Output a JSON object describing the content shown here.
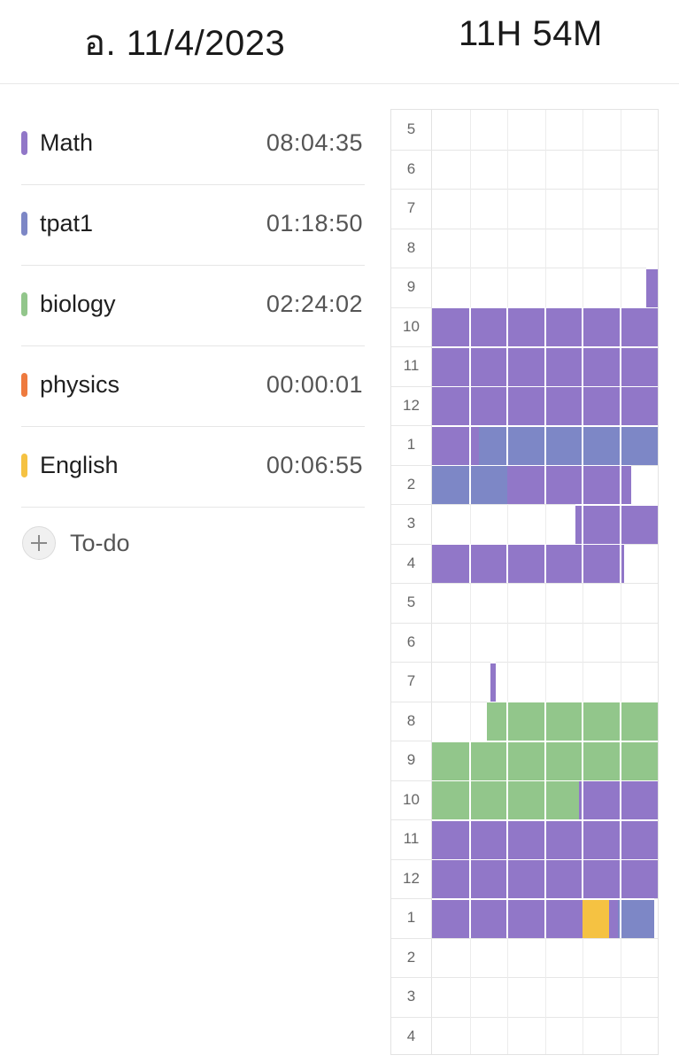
{
  "header": {
    "date": "อ. 11/4/2023",
    "total": "11H 54M"
  },
  "colors": {
    "Math": "#9177c8",
    "tpat1": "#7d87c6",
    "biology": "#92c68b",
    "physics": "#ee7a3e",
    "English": "#f5c242"
  },
  "subjects": [
    {
      "name": "Math",
      "time": "08:04:35"
    },
    {
      "name": "tpat1",
      "time": "01:18:50"
    },
    {
      "name": "biology",
      "time": "02:24:02"
    },
    {
      "name": "physics",
      "time": "00:00:01"
    },
    {
      "name": "English",
      "time": "00:06:55"
    }
  ],
  "todo": {
    "label": "To-do",
    "icon": "plus-icon"
  },
  "timeline": {
    "hours": [
      "5",
      "6",
      "7",
      "8",
      "9",
      "10",
      "11",
      "12",
      "1",
      "2",
      "3",
      "4",
      "5",
      "6",
      "7",
      "8",
      "9",
      "10",
      "11",
      "12",
      "1",
      "2",
      "3",
      "4"
    ],
    "sessions": [
      {
        "subject": "Math",
        "row": 4,
        "from": 57,
        "to": 60
      },
      {
        "subject": "Math",
        "row": 5,
        "from": 0,
        "to": 60
      },
      {
        "subject": "Math",
        "row": 6,
        "from": 0,
        "to": 60
      },
      {
        "subject": "Math",
        "row": 7,
        "from": 0,
        "to": 60
      },
      {
        "subject": "Math",
        "row": 8,
        "from": 0,
        "to": 12.5
      },
      {
        "subject": "tpat1",
        "row": 8,
        "from": 12.5,
        "to": 60
      },
      {
        "subject": "tpat1",
        "row": 9,
        "from": 0,
        "to": 20
      },
      {
        "subject": "Math",
        "row": 9,
        "from": 20,
        "to": 53
      },
      {
        "subject": "Math",
        "row": 10,
        "from": 38,
        "to": 60
      },
      {
        "subject": "Math",
        "row": 11,
        "from": 0,
        "to": 51
      },
      {
        "subject": "Math",
        "row": 14,
        "from": 15.5,
        "to": 17
      },
      {
        "subject": "biology",
        "row": 15,
        "from": 14.5,
        "to": 60
      },
      {
        "subject": "biology",
        "row": 16,
        "from": 0,
        "to": 60
      },
      {
        "subject": "biology",
        "row": 17,
        "from": 0,
        "to": 39
      },
      {
        "subject": "Math",
        "row": 17,
        "from": 39,
        "to": 60
      },
      {
        "subject": "Math",
        "row": 18,
        "from": 0,
        "to": 60
      },
      {
        "subject": "Math",
        "row": 19,
        "from": 0,
        "to": 60
      },
      {
        "subject": "Math",
        "row": 20,
        "from": 0,
        "to": 40
      },
      {
        "subject": "English",
        "row": 20,
        "from": 40,
        "to": 47
      },
      {
        "subject": "Math",
        "row": 20,
        "from": 47,
        "to": 49.5
      },
      {
        "subject": "tpat1",
        "row": 20,
        "from": 49.5,
        "to": 59
      }
    ]
  }
}
